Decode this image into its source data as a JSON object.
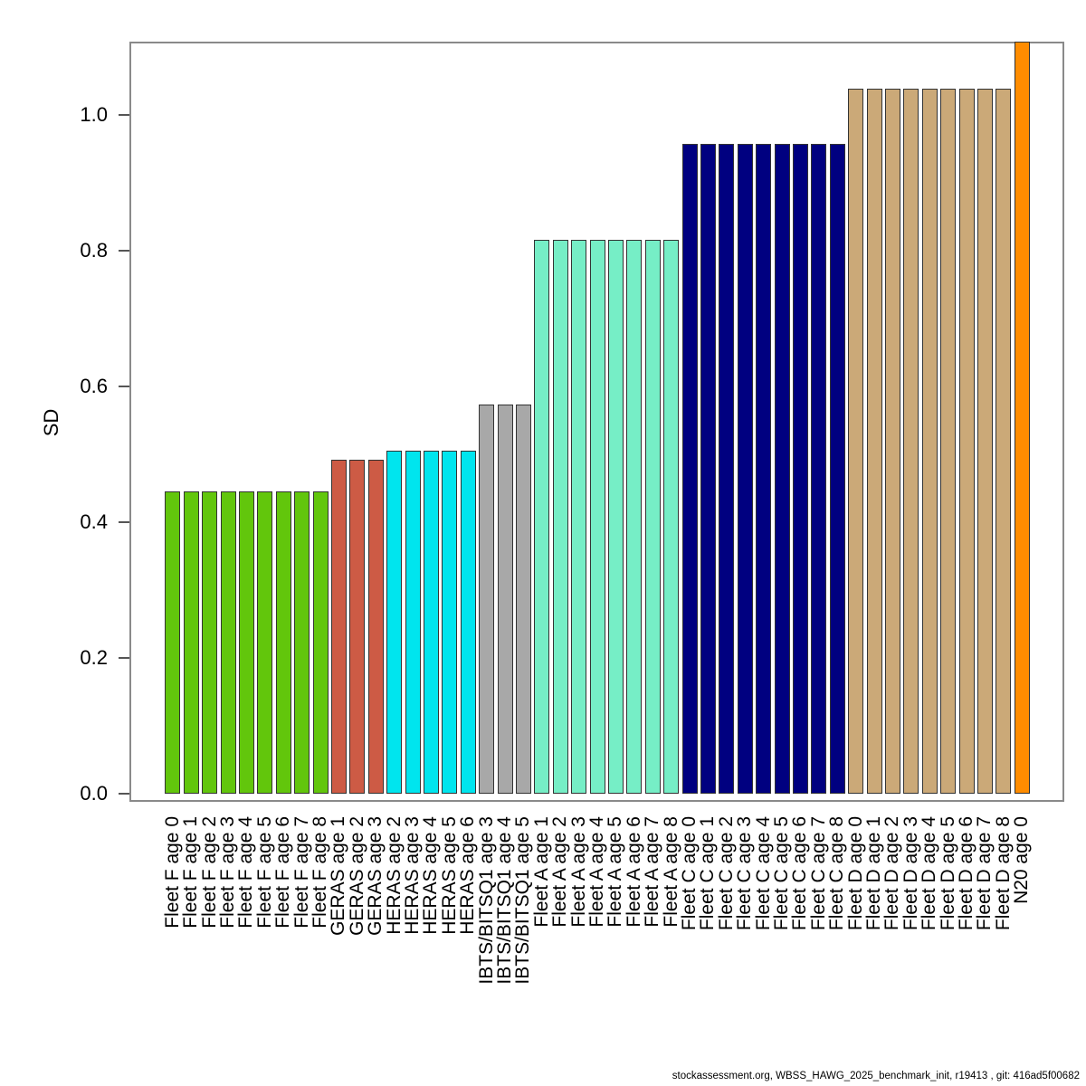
{
  "footer": {
    "text": "stockassessment.org, WBSS_HAWG_2025_benchmark_init, r19413 , git: 416ad5f00682"
  },
  "chart_data": {
    "type": "bar",
    "title": "",
    "xlabel": "",
    "ylabel": "SD",
    "ylim": [
      0,
      1.12
    ],
    "grid": false,
    "legend": "none",
    "yticks": [
      {
        "label": "0.0",
        "value": 0.0
      },
      {
        "label": "0.2",
        "value": 0.2
      },
      {
        "label": "0.4",
        "value": 0.4
      },
      {
        "label": "0.6",
        "value": 0.6
      },
      {
        "label": "0.8",
        "value": 0.8
      },
      {
        "label": "1.0",
        "value": 1.0
      }
    ],
    "group_colors": {
      "Fleet F": "#62C60C",
      "GERAS": "#CD5B45",
      "HERAS": "#00E5EE",
      "IBTS/BITSQ1": "#A8A8A8",
      "Fleet A": "#76EEC6",
      "Fleet C": "#000080",
      "Fleet D": "#CBA978",
      "N20": "#FF8C00"
    },
    "bars": [
      {
        "label": "Fleet F age 0",
        "value": 0.445,
        "color": "#62C60C"
      },
      {
        "label": "Fleet F age 1",
        "value": 0.445,
        "color": "#62C60C"
      },
      {
        "label": "Fleet F age 2",
        "value": 0.445,
        "color": "#62C60C"
      },
      {
        "label": "Fleet F age 3",
        "value": 0.445,
        "color": "#62C60C"
      },
      {
        "label": "Fleet F age 4",
        "value": 0.445,
        "color": "#62C60C"
      },
      {
        "label": "Fleet F age 5",
        "value": 0.445,
        "color": "#62C60C"
      },
      {
        "label": "Fleet F age 6",
        "value": 0.445,
        "color": "#62C60C"
      },
      {
        "label": "Fleet F age 7",
        "value": 0.445,
        "color": "#62C60C"
      },
      {
        "label": "Fleet F age 8",
        "value": 0.445,
        "color": "#62C60C"
      },
      {
        "label": "GERAS age 1",
        "value": 0.492,
        "color": "#CD5B45"
      },
      {
        "label": "GERAS age 2",
        "value": 0.492,
        "color": "#CD5B45"
      },
      {
        "label": "GERAS age 3",
        "value": 0.492,
        "color": "#CD5B45"
      },
      {
        "label": "HERAS age 2",
        "value": 0.506,
        "color": "#00E5EE"
      },
      {
        "label": "HERAS age 3",
        "value": 0.506,
        "color": "#00E5EE"
      },
      {
        "label": "HERAS age 4",
        "value": 0.506,
        "color": "#00E5EE"
      },
      {
        "label": "HERAS age 5",
        "value": 0.506,
        "color": "#00E5EE"
      },
      {
        "label": "HERAS age 6",
        "value": 0.506,
        "color": "#00E5EE"
      },
      {
        "label": "IBTS/BITSQ1 age 3",
        "value": 0.573,
        "color": "#A8A8A8"
      },
      {
        "label": "IBTS/BITSQ1 age 4",
        "value": 0.573,
        "color": "#A8A8A8"
      },
      {
        "label": "IBTS/BITSQ1 age 5",
        "value": 0.573,
        "color": "#A8A8A8"
      },
      {
        "label": "Fleet A age 1",
        "value": 0.816,
        "color": "#76EEC6"
      },
      {
        "label": "Fleet A age 2",
        "value": 0.816,
        "color": "#76EEC6"
      },
      {
        "label": "Fleet A age 3",
        "value": 0.816,
        "color": "#76EEC6"
      },
      {
        "label": "Fleet A age 4",
        "value": 0.816,
        "color": "#76EEC6"
      },
      {
        "label": "Fleet A age 5",
        "value": 0.816,
        "color": "#76EEC6"
      },
      {
        "label": "Fleet A age 6",
        "value": 0.816,
        "color": "#76EEC6"
      },
      {
        "label": "Fleet A age 7",
        "value": 0.816,
        "color": "#76EEC6"
      },
      {
        "label": "Fleet A age 8",
        "value": 0.816,
        "color": "#76EEC6"
      },
      {
        "label": "Fleet C age 0",
        "value": 0.957,
        "color": "#000080"
      },
      {
        "label": "Fleet C age 1",
        "value": 0.957,
        "color": "#000080"
      },
      {
        "label": "Fleet C age 2",
        "value": 0.957,
        "color": "#000080"
      },
      {
        "label": "Fleet C age 3",
        "value": 0.957,
        "color": "#000080"
      },
      {
        "label": "Fleet C age 4",
        "value": 0.957,
        "color": "#000080"
      },
      {
        "label": "Fleet C age 5",
        "value": 0.957,
        "color": "#000080"
      },
      {
        "label": "Fleet C age 6",
        "value": 0.957,
        "color": "#000080"
      },
      {
        "label": "Fleet C age 7",
        "value": 0.957,
        "color": "#000080"
      },
      {
        "label": "Fleet C age 8",
        "value": 0.957,
        "color": "#000080"
      },
      {
        "label": "Fleet D age 0",
        "value": 1.039,
        "color": "#CBA978"
      },
      {
        "label": "Fleet D age 1",
        "value": 1.039,
        "color": "#CBA978"
      },
      {
        "label": "Fleet D age 2",
        "value": 1.039,
        "color": "#CBA978"
      },
      {
        "label": "Fleet D age 3",
        "value": 1.039,
        "color": "#CBA978"
      },
      {
        "label": "Fleet D age 4",
        "value": 1.039,
        "color": "#CBA978"
      },
      {
        "label": "Fleet D age 5",
        "value": 1.039,
        "color": "#CBA978"
      },
      {
        "label": "Fleet D age 6",
        "value": 1.039,
        "color": "#CBA978"
      },
      {
        "label": "Fleet D age 7",
        "value": 1.039,
        "color": "#CBA978"
      },
      {
        "label": "Fleet D age 8",
        "value": 1.039,
        "color": "#CBA978"
      },
      {
        "label": "N20 age 0",
        "value": 1.108,
        "color": "#FF8C00",
        "clipped_at_top": true
      }
    ]
  }
}
